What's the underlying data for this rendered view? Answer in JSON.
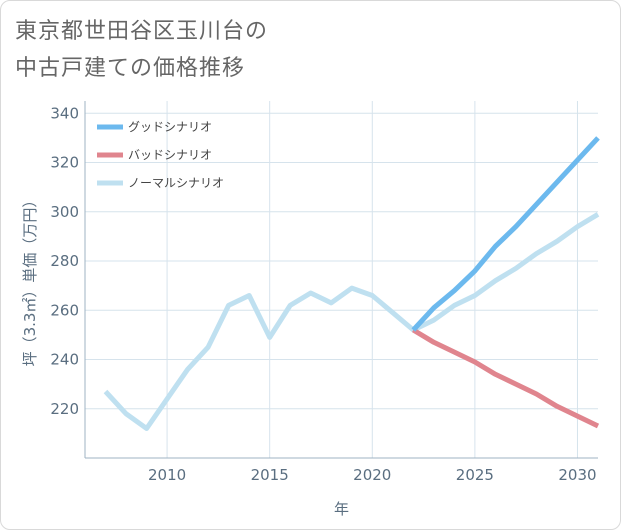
{
  "title_lines": [
    "東京都世田谷区玉川台の",
    "中古戸建ての価格推移"
  ],
  "chart_data": {
    "type": "line",
    "title": "東京都世田谷区玉川台の中古戸建ての価格推移",
    "xlabel": "年",
    "ylabel": "坪（3.3㎡）単価（万円）",
    "xlim": [
      2006,
      2031
    ],
    "ylim": [
      200,
      345
    ],
    "x_ticks": [
      2010,
      2015,
      2020,
      2025,
      2030
    ],
    "y_ticks": [
      220,
      240,
      260,
      280,
      300,
      320,
      340
    ],
    "grid": true,
    "legend_position": "top-left",
    "series": [
      {
        "name": "グッドシナリオ",
        "color": "#6cb9ee",
        "x": [
          2022,
          2023,
          2024,
          2025,
          2026,
          2027,
          2028,
          2029,
          2030,
          2031
        ],
        "values": [
          252,
          261,
          268,
          276,
          286,
          294,
          303,
          312,
          321,
          330
        ]
      },
      {
        "name": "バッドシナリオ",
        "color": "#e0858e",
        "x": [
          2022,
          2023,
          2024,
          2025,
          2026,
          2027,
          2028,
          2029,
          2030,
          2031
        ],
        "values": [
          252,
          247,
          243,
          239,
          234,
          230,
          226,
          221,
          217,
          213
        ]
      },
      {
        "name": "ノーマルシナリオ",
        "color": "#bfe0f0",
        "x": [
          2007,
          2008,
          2009,
          2010,
          2011,
          2012,
          2013,
          2014,
          2015,
          2016,
          2017,
          2018,
          2019,
          2020,
          2021,
          2022,
          2023,
          2024,
          2025,
          2026,
          2027,
          2028,
          2029,
          2030,
          2031
        ],
        "values": [
          227,
          218,
          212,
          224,
          236,
          245,
          262,
          266,
          249,
          262,
          267,
          263,
          269,
          266,
          259,
          252,
          256,
          262,
          266,
          272,
          277,
          283,
          288,
          294,
          299
        ]
      }
    ]
  }
}
